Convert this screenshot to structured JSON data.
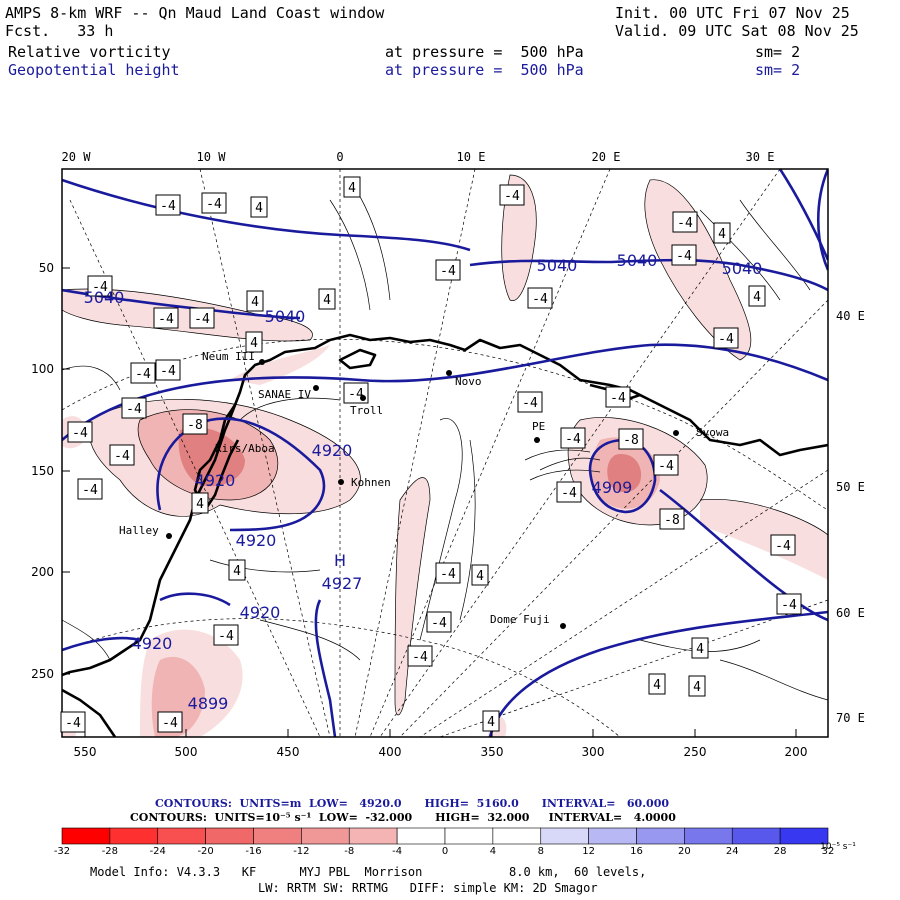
{
  "header": {
    "title": "AMPS 8-km WRF -- Qn Maud Land Coast window",
    "forecast": "Fcst.   33 h",
    "init": "Init. 00 UTC Fri 07 Nov 25",
    "valid": "Valid. 09 UTC Sat 08 Nov 25",
    "field1_name": "Relative vorticity",
    "field1_level": "at pressure =  500 hPa",
    "field1_sm": "sm= 2",
    "field2_name": "Geopotential height",
    "field2_level": "at pressure =  500 hPa",
    "field2_sm": "sm= 2"
  },
  "map": {
    "top_lon_labels": [
      "20 W",
      "10 W",
      "0",
      "10 E",
      "20 E",
      "30 E"
    ],
    "right_lon_labels": [
      "40 E",
      "50 E",
      "60 E",
      "70 E"
    ],
    "left_y_ticks": [
      "50",
      "100",
      "150",
      "200",
      "250"
    ],
    "bottom_x_ticks": [
      "550",
      "500",
      "450",
      "400",
      "350",
      "300",
      "250",
      "200"
    ],
    "stations": [
      "Neum III",
      "SANAE IV",
      "Troll",
      "Novo",
      "PE",
      "Syowa",
      "Kohnen",
      "Halley",
      "Dome Fuji"
    ],
    "place_labels": [
      "Kirs/Aboa"
    ],
    "height_labels": [
      "5040",
      "5040",
      "5040",
      "5040",
      "5040",
      "4920",
      "4920",
      "4920",
      "4920",
      "4920",
      "4909",
      "4899"
    ],
    "high_marker": {
      "symbol": "H",
      "value": "4927"
    },
    "vorticity_box_labels": [
      "4",
      "-4",
      "-8"
    ],
    "colors": {
      "height_contour": "#1a1a9c",
      "coast": "#000000",
      "vort_neg_light": "#f8dede",
      "vort_neg_mid": "#f0b4b4",
      "vort_neg_strong": "#e08080"
    }
  },
  "footer": {
    "contours_height": "CONTOURS:  UNITS=m  LOW=   4920.0      HIGH=  5160.0      INTERVAL=   60.000",
    "contours_vort": "CONTOURS:  UNITS=10⁻⁵ s⁻¹  LOW=  -32.000      HIGH=  32.000     INTERVAL=   4.0000",
    "colorbar_labels": [
      "-32",
      "-28",
      "-24",
      "-20",
      "-16",
      "-12",
      "-8",
      "-4",
      "0",
      "4",
      "8",
      "12",
      "16",
      "20",
      "24",
      "28",
      "32"
    ],
    "colorbar_unit": "10⁻⁵ s⁻¹",
    "colorbar_colors": [
      "#ff0000",
      "#ff3030",
      "#f85050",
      "#f06868",
      "#f08080",
      "#f09898",
      "#f4b4b4",
      "#fad8d8",
      "#ffffff",
      "#ffffff",
      "#d8d8f8",
      "#b8b8f4",
      "#9898f0",
      "#7878ec",
      "#5858ec",
      "#3838f0",
      "#0808ff"
    ],
    "model_info_1": "Model Info: V4.3.3   KF      MYJ PBL  Morrison            8.0 km,  60 levels,",
    "model_info_2": "LW: RRTM SW: RRTMG   DIFF: simple KM: 2D Smagor"
  }
}
